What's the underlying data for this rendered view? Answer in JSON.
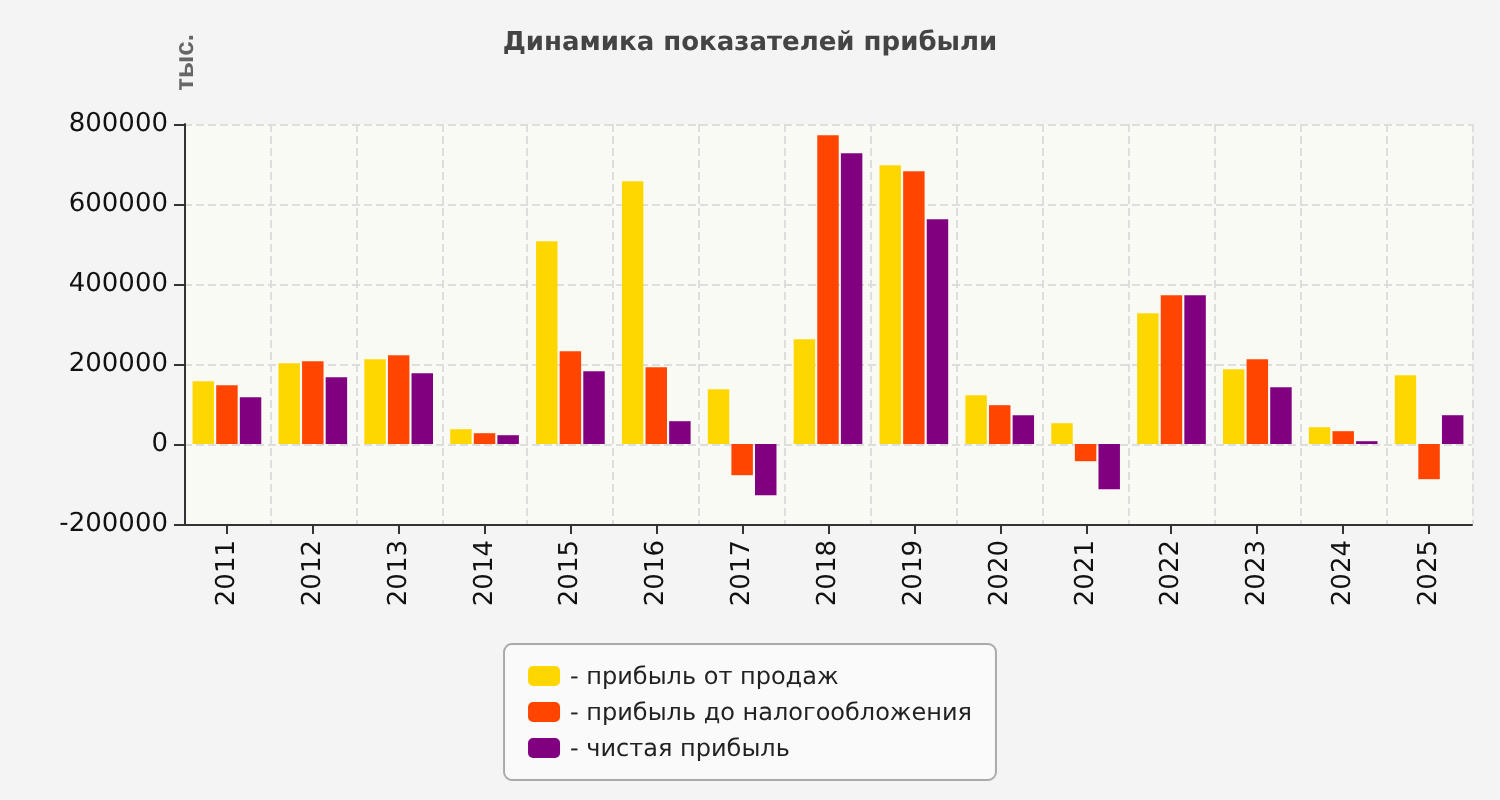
{
  "chart_data": {
    "type": "bar",
    "title": "Динамика показателей прибыли",
    "ylabel": "тыс.",
    "categories": [
      "2011",
      "2012",
      "2013",
      "2014",
      "2015",
      "2016",
      "2017",
      "2018",
      "2019",
      "2020",
      "2021",
      "2022",
      "2023",
      "2024",
      "2025"
    ],
    "series": [
      {
        "name": "- прибыль от продаж",
        "color": "#ffd700",
        "values": [
          157000,
          202000,
          212000,
          37000,
          507000,
          657000,
          137000,
          262000,
          697000,
          122000,
          52000,
          327000,
          187000,
          42000,
          172000
        ]
      },
      {
        "name": "- прибыль до налогообложения",
        "color": "#ff4500",
        "values": [
          147000,
          207000,
          222000,
          27000,
          232000,
          192000,
          -78000,
          772000,
          682000,
          97000,
          -43000,
          372000,
          212000,
          32000,
          -88000
        ]
      },
      {
        "name": "- чистая прибыль",
        "color": "#800080",
        "values": [
          117000,
          167000,
          177000,
          22000,
          182000,
          57000,
          -128000,
          727000,
          562000,
          72000,
          -113000,
          372000,
          142000,
          7000,
          72000
        ]
      }
    ],
    "ylim": [
      -200000,
      800000
    ],
    "yticks": [
      -200000,
      0,
      200000,
      400000,
      600000,
      800000
    ],
    "grid": true,
    "legend": "bottom"
  }
}
